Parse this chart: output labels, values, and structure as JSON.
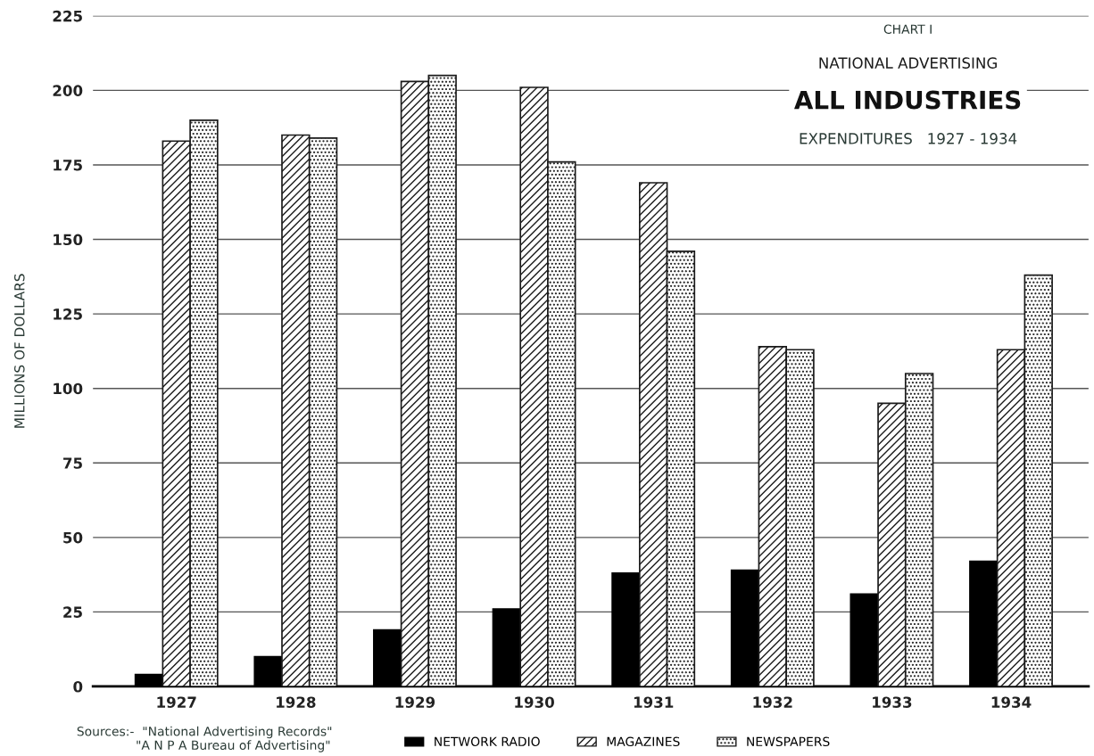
{
  "chart_data": {
    "type": "bar",
    "title": "ALL INDUSTRIES",
    "subtitle": "EXPENDITURES   1927 - 1934",
    "ylabel": "MILLIONS OF DOLLARS",
    "annotations": [
      "CHART I",
      "NATIONAL ADVERTISING",
      "Sources:-  \"National Advertising Records\"\n               \"A N P A Bureau of Advertising\""
    ],
    "categories": [
      "1927",
      "1928",
      "1929",
      "1930",
      "1931",
      "1932",
      "1933",
      "1934"
    ],
    "series": [
      {
        "name": "NETWORK RADIO",
        "color": "#000000",
        "values": [
          4,
          10,
          19,
          26,
          38,
          39,
          31,
          42
        ]
      },
      {
        "name": "MAGAZINES",
        "color": "#1a1a1a",
        "values": [
          183,
          185,
          203,
          201,
          169,
          114,
          95,
          113
        ]
      },
      {
        "name": "NEWSPAPERS",
        "color": "#1a1a1a",
        "values": [
          190,
          184,
          205,
          176,
          146,
          113,
          105,
          138
        ]
      }
    ],
    "ylim": [
      0,
      225
    ],
    "yticks": [
      0,
      25,
      50,
      75,
      100,
      125,
      150,
      175,
      200,
      225
    ],
    "grid": "y",
    "legend": "bottom"
  }
}
